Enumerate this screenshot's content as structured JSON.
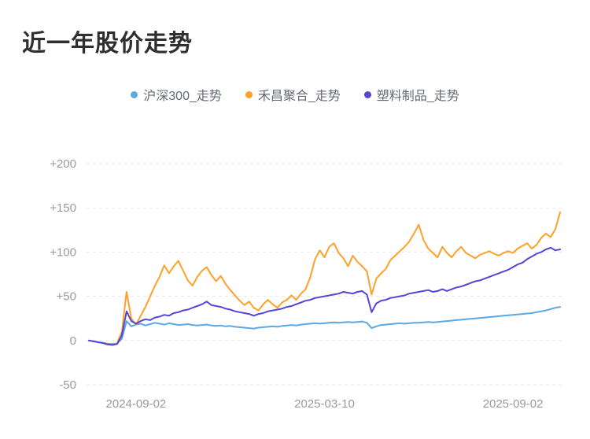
{
  "chart_data": {
    "type": "line",
    "title": "近一年股价走势",
    "xlabel": "",
    "ylabel": "",
    "ylim": [
      -50,
      200
    ],
    "grid": true,
    "grid_color": "#e8e8e8",
    "axis_label_color": "#999999",
    "legend_position": "top",
    "x_tick_labels": [
      "2024-09-02",
      "2025-03-10",
      "2025-09-02"
    ],
    "x_tick_positions": [
      0.1,
      0.5,
      0.9
    ],
    "y_ticks": [
      {
        "value": 200,
        "label": "+200"
      },
      {
        "value": 150,
        "label": "+150"
      },
      {
        "value": 100,
        "label": "+100"
      },
      {
        "value": 50,
        "label": "+50"
      },
      {
        "value": 0,
        "label": "0"
      },
      {
        "value": -50,
        "label": "-50"
      }
    ],
    "series": [
      {
        "name": "沪深300_走势",
        "color": "#5CA8E0",
        "values": [
          0,
          -1,
          -2,
          -2.5,
          -3.5,
          -4,
          -3.5,
          2,
          22,
          16,
          18,
          19,
          17,
          18.5,
          20,
          19,
          18,
          19.5,
          18.5,
          17.5,
          18,
          18.5,
          17.5,
          17,
          17.5,
          18,
          17,
          16.5,
          17,
          16,
          16.5,
          15.5,
          15,
          14.5,
          14,
          13.5,
          14.5,
          15,
          15.5,
          16,
          15.5,
          16.5,
          17,
          17.5,
          17,
          18,
          18.5,
          19,
          19.5,
          19,
          19.5,
          20,
          20.5,
          20,
          20.5,
          21,
          20.5,
          21,
          21.5,
          20,
          14,
          16,
          17.5,
          18,
          18.5,
          19,
          19.5,
          19,
          19.5,
          20,
          20,
          20.5,
          21,
          20.5,
          21,
          21.5,
          22,
          22.5,
          23,
          23.5,
          24,
          24.5,
          25,
          25.5,
          26,
          26.5,
          27,
          27.5,
          28,
          28.5,
          29,
          29.5,
          30,
          30.5,
          31,
          32,
          33,
          34,
          35.5,
          37,
          38
        ]
      },
      {
        "name": "禾昌聚合_走势",
        "color": "#FFA028",
        "values": [
          0,
          -1,
          -2,
          -3,
          -4,
          -5,
          -3,
          10,
          55,
          25,
          18,
          28,
          38,
          50,
          62,
          72,
          85,
          76,
          84,
          90,
          79,
          68,
          62,
          72,
          79,
          83,
          74,
          67,
          73,
          64,
          57,
          51,
          45,
          40,
          44,
          37,
          34,
          41,
          46,
          41,
          37,
          43,
          46,
          51,
          46,
          53,
          58,
          72,
          92,
          102,
          94,
          106,
          110,
          99,
          93,
          84,
          96,
          89,
          84,
          78,
          52,
          70,
          76,
          81,
          91,
          96,
          101,
          106,
          112,
          121,
          131,
          114,
          104,
          99,
          94,
          106,
          99,
          94,
          101,
          106,
          99,
          96,
          93,
          97,
          99,
          101,
          98,
          96,
          99,
          101,
          99,
          104,
          107,
          110,
          104,
          108,
          116,
          121,
          117,
          126,
          145
        ]
      },
      {
        "name": "塑料制品_走势",
        "color": "#5246D7",
        "values": [
          0,
          -1,
          -2,
          -3,
          -4.5,
          -5,
          -4,
          6,
          33,
          22,
          19,
          22,
          24,
          23,
          26,
          27,
          29,
          28,
          31,
          32,
          34,
          35,
          37,
          39,
          41,
          44,
          40,
          39,
          38,
          36,
          35,
          33,
          32,
          31,
          30,
          28,
          30,
          31,
          33,
          34,
          35,
          36,
          38,
          39,
          41,
          43,
          45,
          46,
          48,
          49,
          50,
          51,
          52,
          53,
          55,
          54,
          53,
          55,
          56,
          52,
          32,
          42,
          45,
          46,
          48,
          49,
          50,
          51,
          53,
          54,
          55,
          56,
          57,
          55,
          56,
          58,
          56,
          58,
          60,
          61,
          63,
          65,
          67,
          68,
          70,
          72,
          74,
          76,
          78,
          80,
          83,
          86,
          88,
          92,
          95,
          98,
          100,
          103,
          105,
          102,
          103
        ]
      }
    ]
  }
}
